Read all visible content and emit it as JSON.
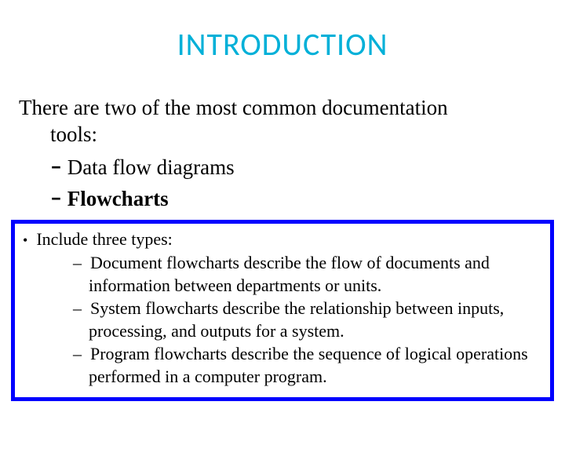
{
  "title": "INTRODUCTION",
  "intro": {
    "text": "There are two of the most common documentation tools:"
  },
  "mainItems": {
    "item1": "Data flow diagrams",
    "item2": "Flowcharts"
  },
  "box": {
    "header": "Include three types:",
    "items": {
      "item1": "Document flowcharts describe the flow of documents and information between departments or units.",
      "item2": "System flowcharts describe the relationship between inputs, processing, and outputs for a system.",
      "item3": "Program flowcharts describe the sequence of logical operations performed in a computer program."
    }
  },
  "styling": {
    "title_color": "#00b0d8",
    "title_fontsize": 40,
    "body_fontsize": 27,
    "box_fontsize": 22,
    "box_border_color": "#0000ff",
    "box_border_width": 5,
    "background_color": "#ffffff",
    "text_color": "#000000"
  }
}
